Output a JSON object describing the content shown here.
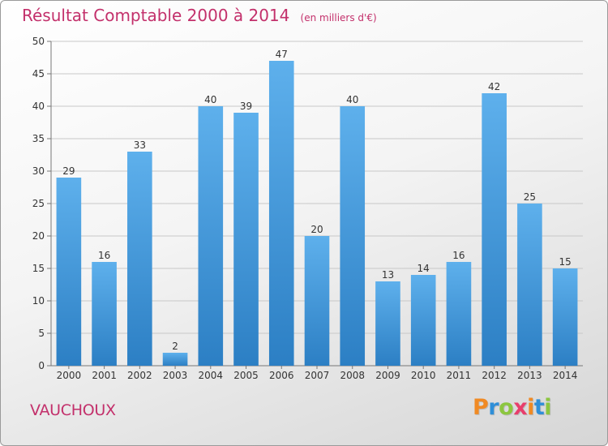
{
  "header": {
    "title": "Résultat Comptable 2000 à 2014",
    "unit": "(en milliers d'€)"
  },
  "commune": "VAUCHOUX",
  "logo": {
    "text": "Proxiti",
    "letter_colors": [
      "#f08a24",
      "#2f8fd8",
      "#8cc63f",
      "#e83e6c",
      "#f08a24",
      "#2f8fd8",
      "#8cc63f"
    ]
  },
  "colors": {
    "bar_top": "#5eb0ec",
    "bar_bottom": "#2c7fc4",
    "title": "#c3306b",
    "grid": "#c8c8c8"
  },
  "chart_data": {
    "type": "bar",
    "categories": [
      "2000",
      "2001",
      "2002",
      "2003",
      "2004",
      "2005",
      "2006",
      "2007",
      "2008",
      "2009",
      "2010",
      "2011",
      "2012",
      "2013",
      "2014"
    ],
    "values": [
      29,
      16,
      33,
      2,
      40,
      39,
      47,
      20,
      40,
      13,
      14,
      16,
      42,
      25,
      15
    ],
    "ylim": [
      0,
      50
    ],
    "yticks": [
      0,
      5,
      10,
      15,
      20,
      25,
      30,
      35,
      40,
      45,
      50
    ],
    "grid": true
  }
}
